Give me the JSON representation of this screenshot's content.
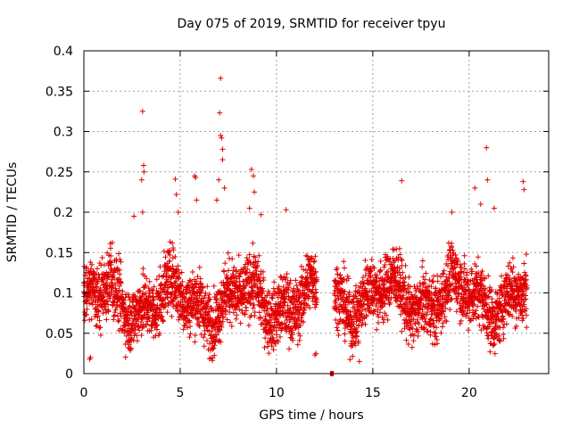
{
  "chart_data": {
    "type": "scatter",
    "title": "Day 075 of 2019, SRMTID for receiver tpyu",
    "xlabel": "GPS time / hours",
    "ylabel": "SRMTID / TECUs",
    "xlim": [
      0,
      24.13
    ],
    "ylim": [
      0,
      0.4
    ],
    "xticks": [
      0,
      5,
      10,
      15,
      20
    ],
    "xtick_labels": [
      "0",
      "5",
      "10",
      "15",
      "20"
    ],
    "yticks": [
      0,
      0.05,
      0.1,
      0.15,
      0.2,
      0.25,
      0.3,
      0.35,
      0.4
    ],
    "ytick_labels": [
      "0",
      "0.05",
      "0.1",
      "0.15",
      "0.2",
      "0.25",
      "0.3",
      "0.35",
      "0.4"
    ],
    "grid": true,
    "marker": "+",
    "color": "#e00000",
    "series": [
      {
        "name": "SRMTID",
        "segments": [
          {
            "x_start": 0.0,
            "x_end": 12.1,
            "level": 0.09,
            "spread": 0.035,
            "points_per_hour": 160
          },
          {
            "x_start": 12.8,
            "x_end": 12.95,
            "level": 0.0,
            "spread": 0.0,
            "points_per_hour": 40
          },
          {
            "x_start": 13.0,
            "x_end": 23.0,
            "level": 0.095,
            "spread": 0.035,
            "points_per_hour": 160
          }
        ],
        "points": [
          {
            "x": 3.05,
            "y": 0.325
          },
          {
            "x": 3.1,
            "y": 0.258
          },
          {
            "x": 3.12,
            "y": 0.25
          },
          {
            "x": 3.0,
            "y": 0.24
          },
          {
            "x": 3.05,
            "y": 0.2
          },
          {
            "x": 2.6,
            "y": 0.195
          },
          {
            "x": 4.75,
            "y": 0.241
          },
          {
            "x": 4.8,
            "y": 0.222
          },
          {
            "x": 4.9,
            "y": 0.2
          },
          {
            "x": 5.75,
            "y": 0.245
          },
          {
            "x": 5.8,
            "y": 0.243
          },
          {
            "x": 5.85,
            "y": 0.215
          },
          {
            "x": 7.1,
            "y": 0.366
          },
          {
            "x": 7.05,
            "y": 0.323
          },
          {
            "x": 7.1,
            "y": 0.295
          },
          {
            "x": 7.15,
            "y": 0.292
          },
          {
            "x": 7.2,
            "y": 0.278
          },
          {
            "x": 7.2,
            "y": 0.265
          },
          {
            "x": 7.0,
            "y": 0.24
          },
          {
            "x": 7.3,
            "y": 0.23
          },
          {
            "x": 6.9,
            "y": 0.215
          },
          {
            "x": 8.7,
            "y": 0.253
          },
          {
            "x": 8.8,
            "y": 0.245
          },
          {
            "x": 8.85,
            "y": 0.225
          },
          {
            "x": 8.6,
            "y": 0.205
          },
          {
            "x": 10.5,
            "y": 0.203
          },
          {
            "x": 9.2,
            "y": 0.197
          },
          {
            "x": 16.5,
            "y": 0.239
          },
          {
            "x": 20.9,
            "y": 0.28
          },
          {
            "x": 20.95,
            "y": 0.24
          },
          {
            "x": 20.3,
            "y": 0.23
          },
          {
            "x": 22.8,
            "y": 0.238
          },
          {
            "x": 22.85,
            "y": 0.228
          },
          {
            "x": 21.3,
            "y": 0.205
          },
          {
            "x": 20.6,
            "y": 0.21
          },
          {
            "x": 19.1,
            "y": 0.2
          },
          {
            "x": 12.0,
            "y": 0.023
          },
          {
            "x": 12.05,
            "y": 0.025
          },
          {
            "x": 14.3,
            "y": 0.015
          },
          {
            "x": 0.3,
            "y": 0.018
          },
          {
            "x": 0.35,
            "y": 0.02
          },
          {
            "x": 12.9,
            "y": 0.0
          }
        ]
      }
    ]
  }
}
